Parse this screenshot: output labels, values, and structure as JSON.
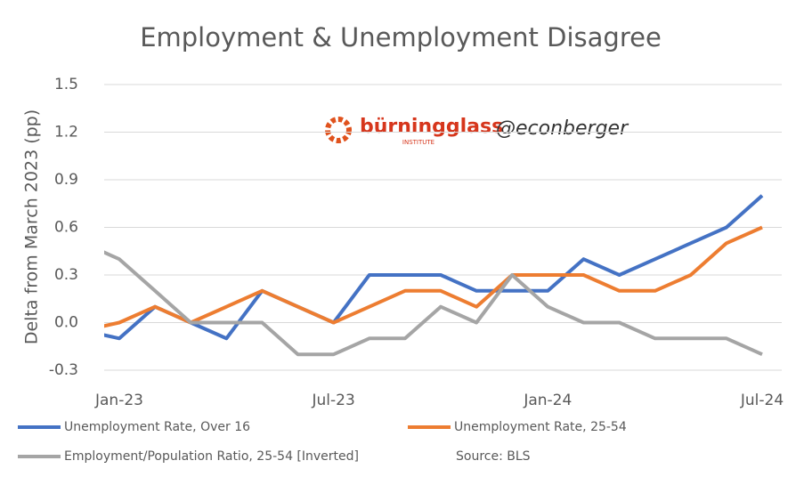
{
  "chart_data": {
    "type": "line",
    "title": "Employment & Unemployment Disagree",
    "y_label": "Delta from March 2023 (pp)",
    "categories": [
      null,
      "Jan-23",
      null,
      null,
      null,
      null,
      null,
      "Jul-23",
      null,
      null,
      null,
      null,
      null,
      "Jan-24",
      null,
      null,
      null,
      null,
      null,
      "Jul-24"
    ],
    "series": [
      {
        "name": "Unemployment Rate, Over 16",
        "color": "#4472c4",
        "values": [
          -0.05,
          -0.1,
          0.1,
          0,
          -0.1,
          0.2,
          0.1,
          0,
          0.3,
          0.3,
          0.3,
          0.2,
          0.2,
          0.2,
          0.4,
          0.3,
          0.4,
          0.5,
          0.6,
          0.8
        ]
      },
      {
        "name": "Unemployment Rate, 25-54",
        "color": "#ed7d31",
        "values": [
          -0.05,
          0,
          0.1,
          0,
          0.1,
          0.2,
          0.1,
          0,
          0.1,
          0.2,
          0.2,
          0.1,
          0.3,
          0.3,
          0.3,
          0.2,
          0.2,
          0.3,
          0.5,
          0.6
        ]
      },
      {
        "name": "Employment/Population Ratio, 25-54 [Inverted]",
        "color": "#a5a5a5",
        "values": [
          0.5,
          0.4,
          0.2,
          0,
          0,
          0,
          -0.2,
          -0.2,
          -0.1,
          -0.1,
          0.1,
          0,
          0.3,
          0.1,
          0,
          0,
          -0.1,
          -0.1,
          -0.1,
          -0.2
        ]
      }
    ],
    "ylim": [
      -0.3,
      1.5
    ],
    "yticks": [
      -0.3,
      {
        "value": 0,
        "label": "0.0"
      },
      0.3,
      0.6,
      0.9,
      1.2,
      1.5
    ],
    "grid": true,
    "source": "Source: BLS",
    "watermark": {
      "brand": "bürningglass",
      "sub": "INSTITUTE",
      "handle": "@econberger"
    }
  }
}
